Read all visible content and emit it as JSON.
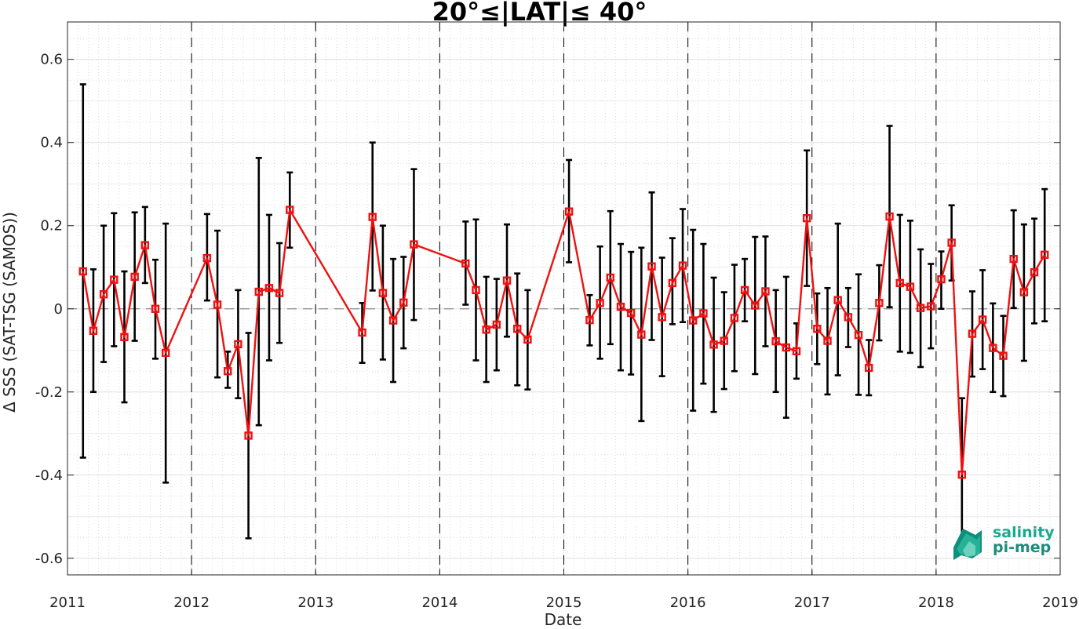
{
  "chart_data": {
    "type": "line",
    "title": "20°≤|LAT|≤ 40°",
    "xlabel": "Date",
    "ylabel": "Δ SSS (SAT-TSG (SAMOS))",
    "xlim": [
      2011,
      2019
    ],
    "ylim": [
      -0.64,
      0.69
    ],
    "x_ticks": [
      "2011",
      "2012",
      "2013",
      "2014",
      "2015",
      "2016",
      "2017",
      "2018",
      "2019"
    ],
    "y_ticks": [
      "-0.6",
      "-0.4",
      "-0.2",
      "0",
      "0.2",
      "0.4",
      "0.6"
    ],
    "y_tick_values": [
      -0.6,
      -0.4,
      -0.2,
      0,
      0.2,
      0.4,
      0.6
    ],
    "grid": true,
    "year_dividers": [
      2012,
      2013,
      2014,
      2015,
      2016,
      2017,
      2018
    ],
    "zero_reference": 0,
    "series": [
      {
        "color": "#ee1111",
        "errorbar_color": "#000000",
        "x": [
          "2011-02",
          "2011-03",
          "2011-04",
          "2011-05",
          "2011-06",
          "2011-07",
          "2011-08",
          "2011-09",
          "2011-10",
          "2012-02",
          "2012-03",
          "2012-04",
          "2012-05",
          "2012-06",
          "2012-07",
          "2012-08",
          "2012-09",
          "2012-10",
          "2013-05",
          "2013-06",
          "2013-07",
          "2013-08",
          "2013-09",
          "2013-10",
          "2014-03",
          "2014-04",
          "2014-05",
          "2014-06",
          "2014-07",
          "2014-08",
          "2014-09",
          "2015-01",
          "2015-03",
          "2015-04",
          "2015-05",
          "2015-06",
          "2015-07",
          "2015-08",
          "2015-09",
          "2015-10",
          "2015-11",
          "2015-12",
          "2016-01",
          "2016-02",
          "2016-03",
          "2016-04",
          "2016-05",
          "2016-06",
          "2016-07",
          "2016-08",
          "2016-09",
          "2016-10",
          "2016-11",
          "2016-12",
          "2017-01",
          "2017-02",
          "2017-03",
          "2017-04",
          "2017-05",
          "2017-06",
          "2017-07",
          "2017-08",
          "2017-09",
          "2017-10",
          "2017-11",
          "2017-12",
          "2018-01",
          "2018-02",
          "2018-03",
          "2018-04",
          "2018-05",
          "2018-06",
          "2018-07",
          "2018-08",
          "2018-09",
          "2018-10",
          "2018-11"
        ],
        "values": [
          0.09,
          -0.053,
          0.035,
          0.07,
          -0.068,
          0.077,
          0.153,
          0.0,
          -0.106,
          0.122,
          0.01,
          -0.15,
          -0.085,
          -0.305,
          0.041,
          0.05,
          0.038,
          0.238,
          -0.057,
          0.221,
          0.038,
          -0.028,
          0.015,
          0.155,
          0.109,
          0.045,
          -0.05,
          -0.038,
          0.068,
          -0.048,
          -0.074,
          0.234,
          -0.027,
          0.014,
          0.075,
          0.005,
          -0.01,
          -0.062,
          0.102,
          -0.02,
          0.062,
          0.104,
          -0.028,
          -0.011,
          -0.086,
          -0.077,
          -0.022,
          0.045,
          0.008,
          0.042,
          -0.078,
          -0.093,
          -0.102,
          0.218,
          -0.048,
          -0.077,
          0.021,
          -0.02,
          -0.063,
          -0.142,
          0.014,
          0.222,
          0.062,
          0.053,
          0.002,
          0.006,
          0.071,
          0.159,
          -0.399,
          -0.06,
          -0.026,
          -0.094,
          -0.113,
          0.12,
          0.04,
          0.088,
          0.13
        ],
        "lower": [
          -0.358,
          -0.2,
          -0.128,
          -0.09,
          -0.225,
          -0.077,
          0.062,
          -0.12,
          -0.418,
          0.02,
          -0.165,
          -0.19,
          -0.215,
          -0.552,
          -0.28,
          -0.124,
          -0.082,
          0.147,
          -0.13,
          0.044,
          -0.122,
          -0.176,
          -0.095,
          -0.027,
          0.01,
          -0.124,
          -0.176,
          -0.148,
          -0.067,
          -0.184,
          -0.194,
          0.112,
          -0.088,
          -0.12,
          -0.085,
          -0.148,
          -0.158,
          -0.27,
          -0.075,
          -0.162,
          -0.037,
          -0.032,
          -0.245,
          -0.18,
          -0.248,
          -0.193,
          -0.15,
          -0.03,
          -0.157,
          -0.09,
          -0.2,
          -0.262,
          -0.168,
          0.055,
          -0.133,
          -0.206,
          -0.16,
          -0.092,
          -0.207,
          -0.208,
          -0.076,
          0.004,
          -0.103,
          -0.106,
          -0.14,
          -0.095,
          0.0,
          0.068,
          -0.582,
          -0.163,
          -0.145,
          -0.2,
          -0.21,
          0.002,
          -0.125,
          -0.035,
          -0.03
        ],
        "upper": [
          0.54,
          0.095,
          0.2,
          0.23,
          0.09,
          0.232,
          0.245,
          0.118,
          0.205,
          0.228,
          0.188,
          -0.103,
          0.045,
          -0.058,
          0.363,
          0.226,
          0.158,
          0.328,
          0.014,
          0.4,
          0.2,
          0.12,
          0.125,
          0.336,
          0.21,
          0.215,
          0.077,
          0.072,
          0.203,
          0.085,
          0.045,
          0.358,
          0.033,
          0.15,
          0.235,
          0.156,
          0.137,
          0.147,
          0.28,
          0.123,
          0.17,
          0.24,
          0.19,
          0.156,
          0.075,
          0.04,
          0.106,
          0.12,
          0.173,
          0.174,
          0.045,
          0.077,
          -0.035,
          0.381,
          0.037,
          0.05,
          0.205,
          0.05,
          0.083,
          -0.075,
          0.105,
          0.44,
          0.226,
          0.212,
          0.143,
          0.108,
          0.138,
          0.249,
          -0.215,
          0.042,
          0.093,
          0.013,
          -0.017,
          0.237,
          0.203,
          0.217,
          0.288
        ]
      }
    ]
  },
  "logo": {
    "line1": "salinity",
    "line2": "pi-mep",
    "colors": [
      "#0e8f7c",
      "#2fc0a2",
      "#7fd8c4"
    ]
  }
}
